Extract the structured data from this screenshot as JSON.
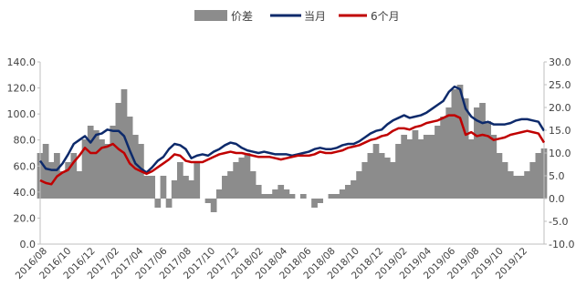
{
  "chart_data": {
    "type": "line",
    "title": "",
    "xlabel": "",
    "ylabel_left": "",
    "ylabel_right": "",
    "legend": {
      "placement": "top-center",
      "entries": [
        {
          "name": "价差",
          "kind": "area",
          "color": "#8c8c8c"
        },
        {
          "name": "当月",
          "kind": "line",
          "color": "#0d2a6b"
        },
        {
          "name": "6个月",
          "kind": "line",
          "color": "#c00000"
        }
      ]
    },
    "y_left": {
      "min": 0,
      "max": 140,
      "ticks": [
        "0.0",
        "20.0",
        "40.0",
        "60.0",
        "80.0",
        "100.0",
        "120.0",
        "140.0"
      ]
    },
    "y_right": {
      "min": -10,
      "max": 30,
      "ticks": [
        "-10.0",
        "-5.0",
        "0.0",
        "5.0",
        "10.0",
        "15.0",
        "20.0",
        "25.0",
        "30.0"
      ]
    },
    "x_ticks": [
      "2016/08",
      "2016/10",
      "2016/12",
      "2017/02",
      "2017/04",
      "2017/06",
      "2017/08",
      "2017/10",
      "2017/12",
      "2018/02",
      "2018/04",
      "2018/06",
      "2018/08",
      "2018/10",
      "2018/12",
      "2019/02",
      "2019/04",
      "2019/06",
      "2019/08",
      "2019/10",
      "2019/12"
    ],
    "series": [
      {
        "name": "价差",
        "axis": "right",
        "values": [
          10,
          12,
          8,
          10,
          6,
          8,
          10,
          6,
          13,
          16,
          15,
          13,
          12,
          16,
          21,
          24,
          18,
          14,
          12,
          5,
          5,
          -2,
          5,
          -2,
          4,
          8,
          5,
          4,
          8,
          0,
          -1,
          -3,
          2,
          5,
          6,
          8,
          9,
          10,
          6,
          3,
          1,
          1,
          2,
          3,
          2,
          1,
          0,
          1,
          0,
          -2,
          -1,
          0,
          1,
          1,
          2,
          3,
          4,
          6,
          8,
          10,
          12,
          10,
          9,
          8,
          12,
          14,
          13,
          15,
          13,
          14,
          14,
          16,
          18,
          20,
          24,
          25,
          22,
          13,
          20,
          21,
          17,
          14,
          10,
          8,
          6,
          5,
          5,
          6,
          8,
          10,
          11
        ]
      },
      {
        "name": "当月",
        "axis": "left",
        "values": [
          64,
          58,
          57,
          57,
          62,
          69,
          77,
          80,
          83,
          78,
          84,
          85,
          88,
          87,
          87,
          83,
          72,
          62,
          58,
          55,
          59,
          64,
          67,
          73,
          77,
          76,
          73,
          66,
          68,
          69,
          68,
          71,
          73,
          76,
          78,
          77,
          74,
          72,
          71,
          70,
          71,
          70,
          69,
          69,
          69,
          68,
          69,
          70,
          71,
          73,
          74,
          73,
          73,
          74,
          76,
          77,
          77,
          79,
          82,
          85,
          87,
          88,
          92,
          95,
          97,
          99,
          97,
          98,
          99,
          101,
          104,
          107,
          110,
          117,
          121,
          119,
          104,
          98,
          95,
          93,
          94,
          92,
          92,
          92,
          93,
          95,
          96,
          96,
          95,
          94,
          87
        ]
      },
      {
        "name": "6个月",
        "axis": "left",
        "values": [
          49,
          47,
          46,
          52,
          55,
          57,
          63,
          68,
          74,
          70,
          70,
          74,
          75,
          77,
          73,
          70,
          62,
          58,
          56,
          54,
          56,
          59,
          62,
          65,
          69,
          68,
          64,
          63,
          63,
          63,
          65,
          67,
          69,
          70,
          71,
          70,
          70,
          69,
          68,
          67,
          67,
          67,
          66,
          65,
          66,
          67,
          68,
          68,
          68,
          69,
          71,
          70,
          70,
          71,
          72,
          74,
          75,
          76,
          78,
          80,
          81,
          83,
          84,
          87,
          89,
          89,
          88,
          90,
          91,
          93,
          94,
          95,
          97,
          99,
          99,
          97,
          84,
          86,
          83,
          84,
          83,
          80,
          81,
          82,
          84,
          85,
          86,
          87,
          86,
          85,
          78
        ]
      }
    ]
  }
}
